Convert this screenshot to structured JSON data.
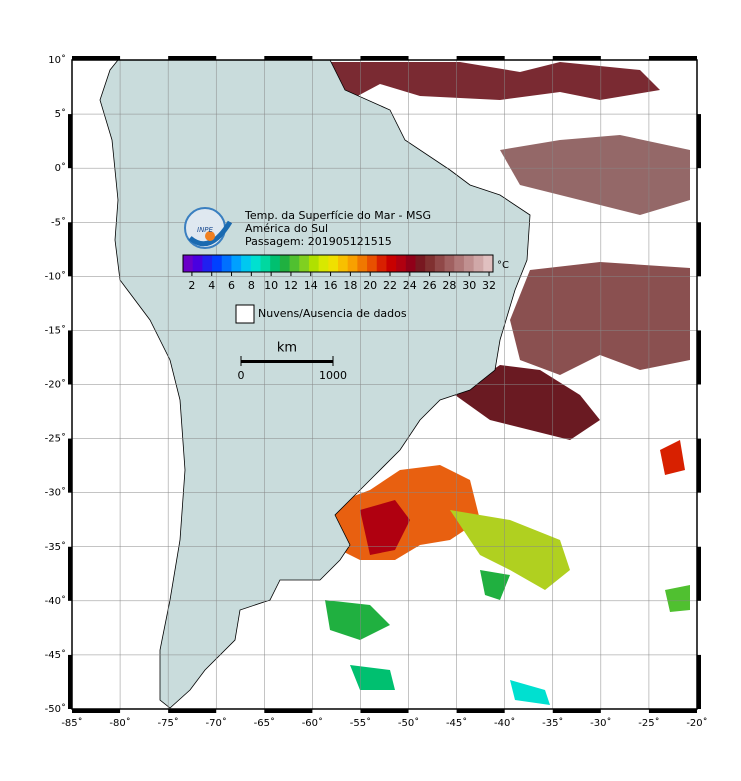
{
  "map": {
    "xlim": [
      -85,
      -20
    ],
    "ylim": [
      -50,
      10
    ],
    "xticks": [
      {
        "value": -85,
        "label": "-85˚"
      },
      {
        "value": -80,
        "label": "-80˚"
      },
      {
        "value": -75,
        "label": "-75˚"
      },
      {
        "value": -70,
        "label": "-70˚"
      },
      {
        "value": -65,
        "label": "-65˚"
      },
      {
        "value": -60,
        "label": "-60˚"
      },
      {
        "value": -55,
        "label": "-55˚"
      },
      {
        "value": -50,
        "label": "-50˚"
      },
      {
        "value": -45,
        "label": "-45˚"
      },
      {
        "value": -40,
        "label": "-40˚"
      },
      {
        "value": -35,
        "label": "-35˚"
      },
      {
        "value": -30,
        "label": "-30˚"
      },
      {
        "value": -25,
        "label": "-25˚"
      },
      {
        "value": -20,
        "label": "-20˚"
      }
    ],
    "yticks": [
      {
        "value": 10,
        "label": "10˚"
      },
      {
        "value": 5,
        "label": "5˚"
      },
      {
        "value": 0,
        "label": "0˚"
      },
      {
        "value": -5,
        "label": "-5˚"
      },
      {
        "value": -10,
        "label": "-10˚"
      },
      {
        "value": -15,
        "label": "-15˚"
      },
      {
        "value": -20,
        "label": "-20˚"
      },
      {
        "value": -25,
        "label": "-25˚"
      },
      {
        "value": -30,
        "label": "-30˚"
      },
      {
        "value": -35,
        "label": "-35˚"
      },
      {
        "value": -40,
        "label": "-40˚"
      },
      {
        "value": -45,
        "label": "-45˚"
      },
      {
        "value": -50,
        "label": "-50˚"
      }
    ]
  },
  "logo": "INPE",
  "legend": {
    "title": "Temp. da Superfície do Mar - MSG",
    "region": "América do Sul",
    "pass": "Passagem: 201905121515",
    "unit": "°C",
    "colorbar_lim": [
      1.1,
      32.4
    ],
    "colorbar_ticks": [
      2,
      4,
      6,
      8,
      10,
      12,
      14,
      16,
      18,
      20,
      22,
      24,
      26,
      28,
      30,
      32
    ],
    "colorbar_colors": [
      "#6a00c8",
      "#4a00e0",
      "#2020f0",
      "#0040ff",
      "#0070ff",
      "#00a0ff",
      "#00c8f0",
      "#00e0d0",
      "#00d8a0",
      "#00c070",
      "#20b040",
      "#50c030",
      "#80d020",
      "#b0e000",
      "#d8e800",
      "#f0e000",
      "#f8c000",
      "#f8a000",
      "#f07800",
      "#e85000",
      "#d82000",
      "#c80000",
      "#b00010",
      "#900018",
      "#781820",
      "#803030",
      "#904848",
      "#a06060",
      "#b07878",
      "#c09090",
      "#d0a8a8",
      "#e0c0c0"
    ],
    "cloud_label": "Nuvens/Ausencia de dados"
  },
  "scale_bar": {
    "title": "km",
    "start": "0",
    "end": "1000"
  }
}
